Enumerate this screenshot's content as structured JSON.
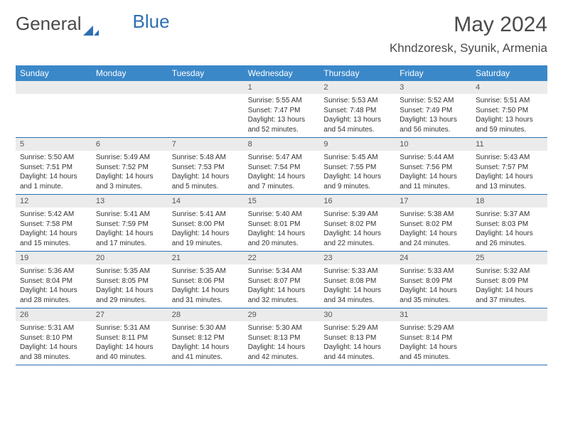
{
  "logo": {
    "text1": "General",
    "text2": "Blue"
  },
  "title": "May 2024",
  "location": "Khndzoresk, Syunik, Armenia",
  "accent_color": "#3b88c9",
  "cell_header_bg": "#ebebeb",
  "days": [
    "Sunday",
    "Monday",
    "Tuesday",
    "Wednesday",
    "Thursday",
    "Friday",
    "Saturday"
  ],
  "weeks": [
    [
      null,
      null,
      null,
      {
        "n": "1",
        "sr": "Sunrise: 5:55 AM",
        "ss": "Sunset: 7:47 PM",
        "d1": "Daylight: 13 hours",
        "d2": "and 52 minutes."
      },
      {
        "n": "2",
        "sr": "Sunrise: 5:53 AM",
        "ss": "Sunset: 7:48 PM",
        "d1": "Daylight: 13 hours",
        "d2": "and 54 minutes."
      },
      {
        "n": "3",
        "sr": "Sunrise: 5:52 AM",
        "ss": "Sunset: 7:49 PM",
        "d1": "Daylight: 13 hours",
        "d2": "and 56 minutes."
      },
      {
        "n": "4",
        "sr": "Sunrise: 5:51 AM",
        "ss": "Sunset: 7:50 PM",
        "d1": "Daylight: 13 hours",
        "d2": "and 59 minutes."
      }
    ],
    [
      {
        "n": "5",
        "sr": "Sunrise: 5:50 AM",
        "ss": "Sunset: 7:51 PM",
        "d1": "Daylight: 14 hours",
        "d2": "and 1 minute."
      },
      {
        "n": "6",
        "sr": "Sunrise: 5:49 AM",
        "ss": "Sunset: 7:52 PM",
        "d1": "Daylight: 14 hours",
        "d2": "and 3 minutes."
      },
      {
        "n": "7",
        "sr": "Sunrise: 5:48 AM",
        "ss": "Sunset: 7:53 PM",
        "d1": "Daylight: 14 hours",
        "d2": "and 5 minutes."
      },
      {
        "n": "8",
        "sr": "Sunrise: 5:47 AM",
        "ss": "Sunset: 7:54 PM",
        "d1": "Daylight: 14 hours",
        "d2": "and 7 minutes."
      },
      {
        "n": "9",
        "sr": "Sunrise: 5:45 AM",
        "ss": "Sunset: 7:55 PM",
        "d1": "Daylight: 14 hours",
        "d2": "and 9 minutes."
      },
      {
        "n": "10",
        "sr": "Sunrise: 5:44 AM",
        "ss": "Sunset: 7:56 PM",
        "d1": "Daylight: 14 hours",
        "d2": "and 11 minutes."
      },
      {
        "n": "11",
        "sr": "Sunrise: 5:43 AM",
        "ss": "Sunset: 7:57 PM",
        "d1": "Daylight: 14 hours",
        "d2": "and 13 minutes."
      }
    ],
    [
      {
        "n": "12",
        "sr": "Sunrise: 5:42 AM",
        "ss": "Sunset: 7:58 PM",
        "d1": "Daylight: 14 hours",
        "d2": "and 15 minutes."
      },
      {
        "n": "13",
        "sr": "Sunrise: 5:41 AM",
        "ss": "Sunset: 7:59 PM",
        "d1": "Daylight: 14 hours",
        "d2": "and 17 minutes."
      },
      {
        "n": "14",
        "sr": "Sunrise: 5:41 AM",
        "ss": "Sunset: 8:00 PM",
        "d1": "Daylight: 14 hours",
        "d2": "and 19 minutes."
      },
      {
        "n": "15",
        "sr": "Sunrise: 5:40 AM",
        "ss": "Sunset: 8:01 PM",
        "d1": "Daylight: 14 hours",
        "d2": "and 20 minutes."
      },
      {
        "n": "16",
        "sr": "Sunrise: 5:39 AM",
        "ss": "Sunset: 8:02 PM",
        "d1": "Daylight: 14 hours",
        "d2": "and 22 minutes."
      },
      {
        "n": "17",
        "sr": "Sunrise: 5:38 AM",
        "ss": "Sunset: 8:02 PM",
        "d1": "Daylight: 14 hours",
        "d2": "and 24 minutes."
      },
      {
        "n": "18",
        "sr": "Sunrise: 5:37 AM",
        "ss": "Sunset: 8:03 PM",
        "d1": "Daylight: 14 hours",
        "d2": "and 26 minutes."
      }
    ],
    [
      {
        "n": "19",
        "sr": "Sunrise: 5:36 AM",
        "ss": "Sunset: 8:04 PM",
        "d1": "Daylight: 14 hours",
        "d2": "and 28 minutes."
      },
      {
        "n": "20",
        "sr": "Sunrise: 5:35 AM",
        "ss": "Sunset: 8:05 PM",
        "d1": "Daylight: 14 hours",
        "d2": "and 29 minutes."
      },
      {
        "n": "21",
        "sr": "Sunrise: 5:35 AM",
        "ss": "Sunset: 8:06 PM",
        "d1": "Daylight: 14 hours",
        "d2": "and 31 minutes."
      },
      {
        "n": "22",
        "sr": "Sunrise: 5:34 AM",
        "ss": "Sunset: 8:07 PM",
        "d1": "Daylight: 14 hours",
        "d2": "and 32 minutes."
      },
      {
        "n": "23",
        "sr": "Sunrise: 5:33 AM",
        "ss": "Sunset: 8:08 PM",
        "d1": "Daylight: 14 hours",
        "d2": "and 34 minutes."
      },
      {
        "n": "24",
        "sr": "Sunrise: 5:33 AM",
        "ss": "Sunset: 8:09 PM",
        "d1": "Daylight: 14 hours",
        "d2": "and 35 minutes."
      },
      {
        "n": "25",
        "sr": "Sunrise: 5:32 AM",
        "ss": "Sunset: 8:09 PM",
        "d1": "Daylight: 14 hours",
        "d2": "and 37 minutes."
      }
    ],
    [
      {
        "n": "26",
        "sr": "Sunrise: 5:31 AM",
        "ss": "Sunset: 8:10 PM",
        "d1": "Daylight: 14 hours",
        "d2": "and 38 minutes."
      },
      {
        "n": "27",
        "sr": "Sunrise: 5:31 AM",
        "ss": "Sunset: 8:11 PM",
        "d1": "Daylight: 14 hours",
        "d2": "and 40 minutes."
      },
      {
        "n": "28",
        "sr": "Sunrise: 5:30 AM",
        "ss": "Sunset: 8:12 PM",
        "d1": "Daylight: 14 hours",
        "d2": "and 41 minutes."
      },
      {
        "n": "29",
        "sr": "Sunrise: 5:30 AM",
        "ss": "Sunset: 8:13 PM",
        "d1": "Daylight: 14 hours",
        "d2": "and 42 minutes."
      },
      {
        "n": "30",
        "sr": "Sunrise: 5:29 AM",
        "ss": "Sunset: 8:13 PM",
        "d1": "Daylight: 14 hours",
        "d2": "and 44 minutes."
      },
      {
        "n": "31",
        "sr": "Sunrise: 5:29 AM",
        "ss": "Sunset: 8:14 PM",
        "d1": "Daylight: 14 hours",
        "d2": "and 45 minutes."
      },
      null
    ]
  ]
}
